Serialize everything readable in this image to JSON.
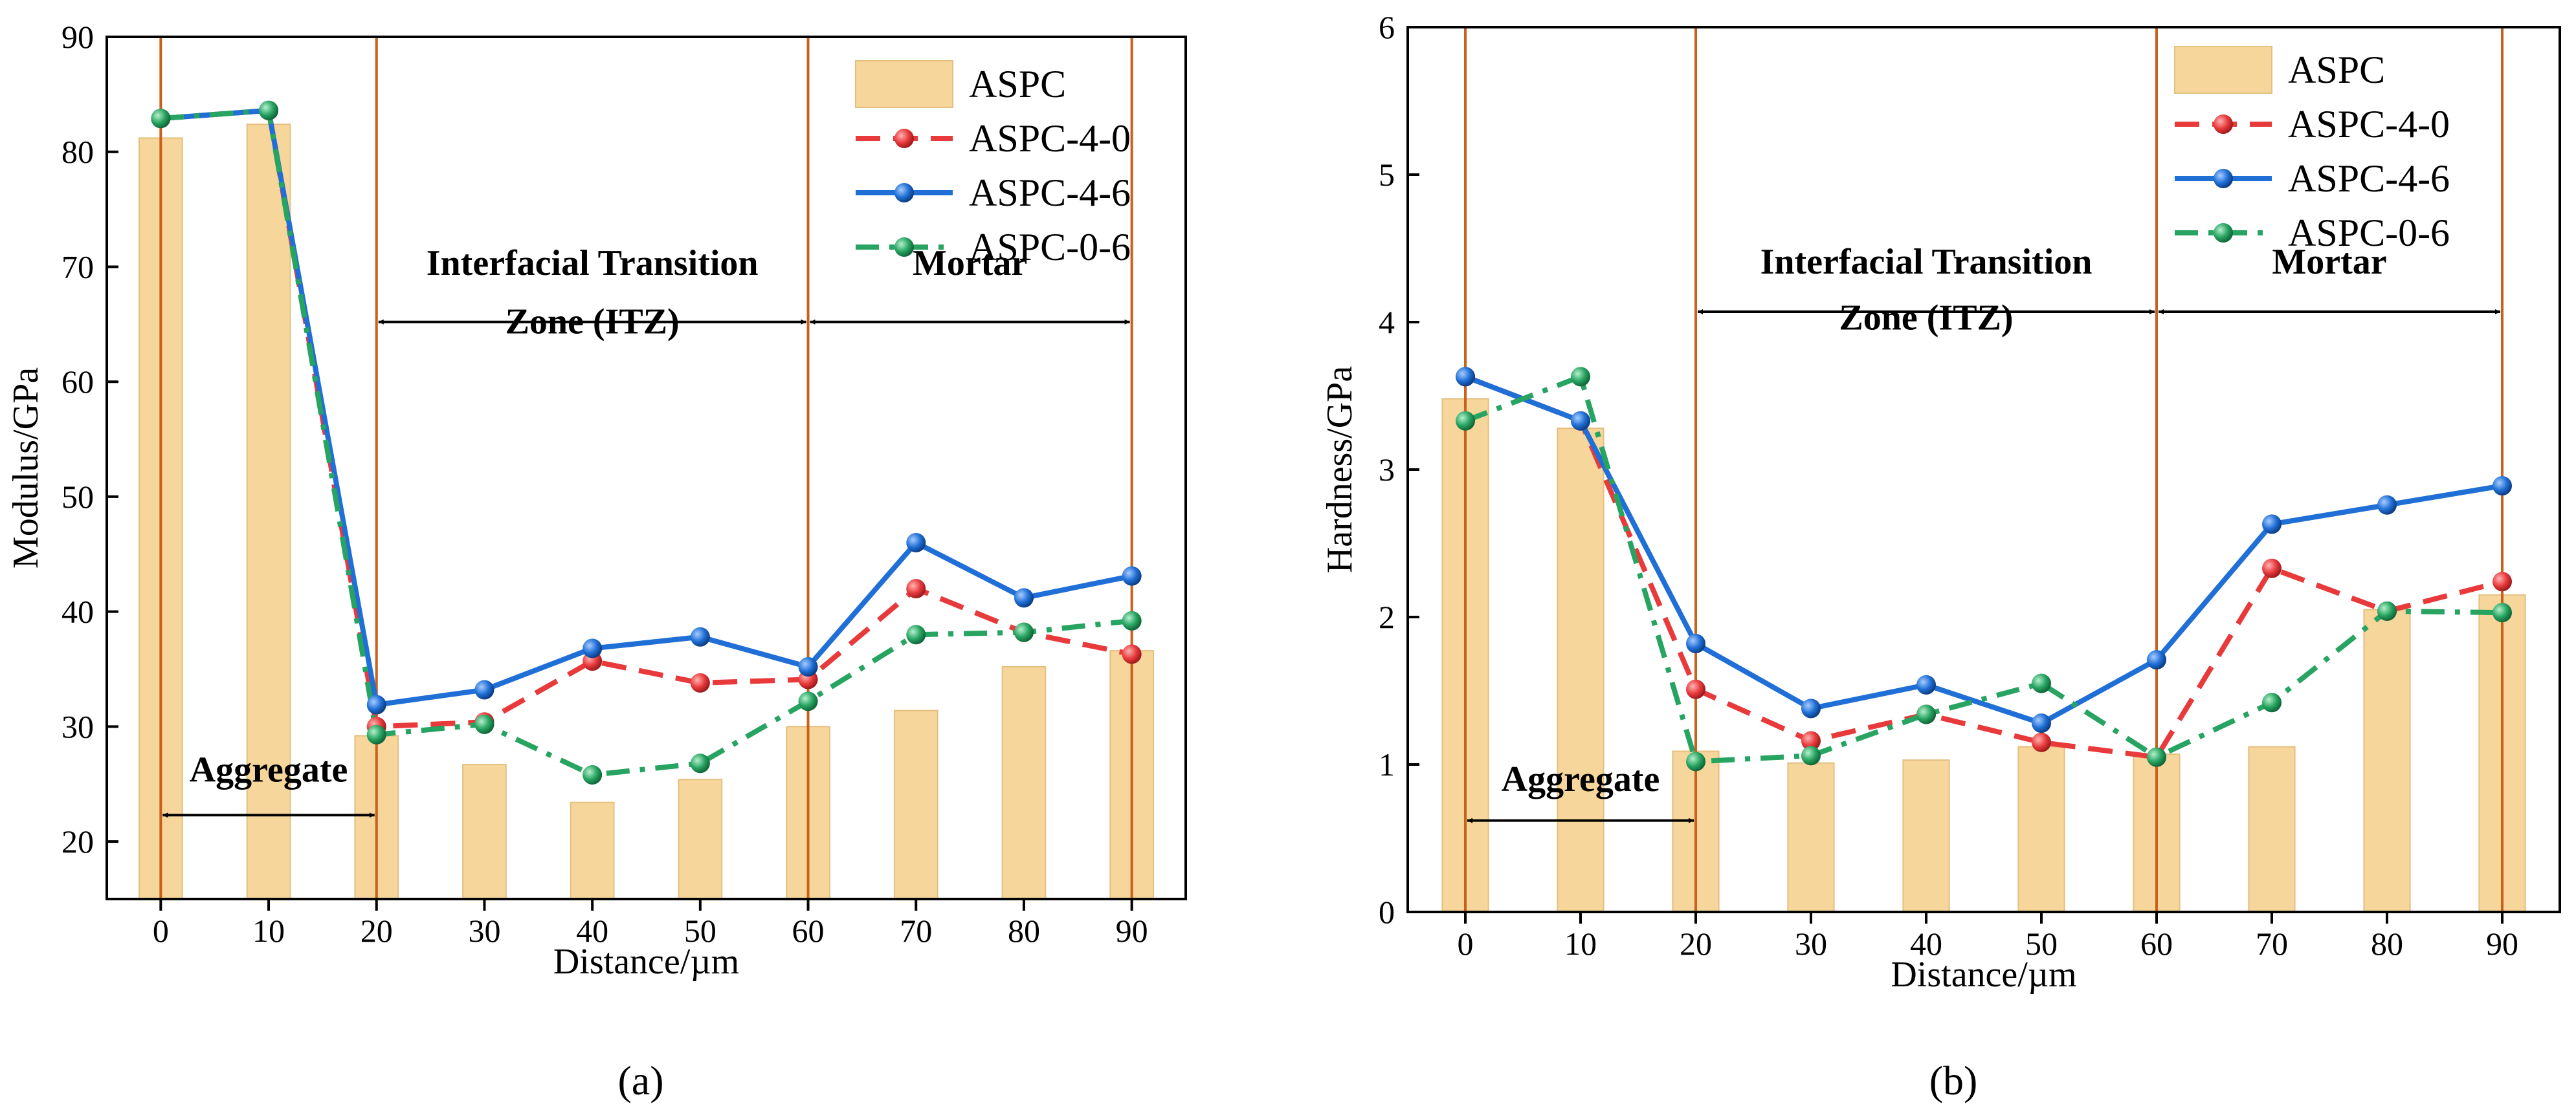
{
  "chart_data": [
    {
      "type": "bar",
      "panel_label": "(a)",
      "xlabel": "Distance/µm",
      "ylabel": "Modulus/GPa",
      "xticks": [
        0,
        10,
        20,
        30,
        40,
        50,
        60,
        70,
        80,
        90
      ],
      "xlim": [
        -5,
        95
      ],
      "ylim": [
        15,
        90
      ],
      "yticks": [
        20,
        30,
        40,
        50,
        60,
        70,
        80,
        90
      ],
      "grid": false,
      "legend_position": "top-right",
      "zone_boundaries": [
        0,
        20,
        60,
        90
      ],
      "regions": [
        {
          "name": "aggregate",
          "lines": [
            "Aggregate"
          ],
          "from": 0,
          "to": 20,
          "arrow_y": 22.3,
          "text_y": [
            25.2
          ]
        },
        {
          "name": "itz",
          "lines": [
            "Interfacial Transition",
            "Zone (ITZ)"
          ],
          "from": 20,
          "to": 60,
          "arrow_y": 65.2,
          "text_y": [
            69.3,
            64.2
          ]
        },
        {
          "name": "mortar",
          "lines": [
            "Mortar"
          ],
          "from": 60,
          "to": 90,
          "arrow_y": 65.2,
          "text_y": [
            69.3
          ]
        }
      ],
      "series": [
        {
          "name": "ASPC",
          "kind": "bar",
          "color": "#f7d69b",
          "x": [
            0,
            10,
            20,
            30,
            40,
            50,
            60,
            70,
            80,
            90
          ],
          "values": [
            81.2,
            82.4,
            29.2,
            26.7,
            23.4,
            25.4,
            30.0,
            31.4,
            35.2,
            36.6
          ]
        },
        {
          "name": "ASPC-4-0",
          "kind": "line",
          "style": "dashed",
          "color": "#e8393b",
          "x": [
            0,
            10,
            20,
            30,
            40,
            50,
            60,
            70,
            80,
            90
          ],
          "values": [
            82.9,
            83.6,
            30.0,
            30.4,
            35.7,
            33.8,
            34.1,
            42.0,
            38.2,
            36.3
          ]
        },
        {
          "name": "ASPC-4-6",
          "kind": "line",
          "style": "solid",
          "color": "#1f6fd6",
          "x": [
            0,
            10,
            20,
            30,
            40,
            50,
            60,
            70,
            80,
            90
          ],
          "values": [
            82.9,
            83.6,
            31.9,
            33.2,
            36.8,
            37.8,
            35.2,
            46.0,
            41.2,
            43.1
          ]
        },
        {
          "name": "ASPC-0-6",
          "kind": "line",
          "style": "dashdot",
          "color": "#27a461",
          "x": [
            0,
            10,
            20,
            30,
            40,
            50,
            60,
            70,
            80,
            90
          ],
          "values": [
            82.9,
            83.6,
            29.3,
            30.2,
            25.8,
            26.8,
            32.2,
            38.0,
            38.2,
            39.2
          ]
        }
      ]
    },
    {
      "type": "bar",
      "panel_label": "(b)",
      "xlabel": "Distance/µm",
      "ylabel": "Hardness/GPa",
      "xticks": [
        0,
        10,
        20,
        30,
        40,
        50,
        60,
        70,
        80,
        90
      ],
      "xlim": [
        -5,
        95
      ],
      "ylim": [
        0,
        6
      ],
      "yticks": [
        0,
        1,
        2,
        3,
        4,
        5,
        6
      ],
      "grid": false,
      "legend_position": "top-right",
      "zone_boundaries": [
        0,
        20,
        60,
        90
      ],
      "regions": [
        {
          "name": "aggregate",
          "lines": [
            "Aggregate"
          ],
          "from": 0,
          "to": 20,
          "arrow_y": 0.62,
          "text_y": [
            0.82
          ]
        },
        {
          "name": "itz",
          "lines": [
            "Interfacial Transition",
            "Zone (ITZ)"
          ],
          "from": 20,
          "to": 60,
          "arrow_y": 4.07,
          "text_y": [
            4.33,
            3.95
          ]
        },
        {
          "name": "mortar",
          "lines": [
            "Mortar"
          ],
          "from": 60,
          "to": 90,
          "arrow_y": 4.07,
          "text_y": [
            4.33
          ]
        }
      ],
      "series": [
        {
          "name": "ASPC",
          "kind": "bar",
          "color": "#f7d69b",
          "x": [
            0,
            10,
            20,
            30,
            40,
            50,
            60,
            70,
            80,
            90
          ],
          "values": [
            3.48,
            3.28,
            1.09,
            1.01,
            1.03,
            1.12,
            1.07,
            1.12,
            2.05,
            2.15
          ]
        },
        {
          "name": "ASPC-4-0",
          "kind": "line",
          "style": "dashed",
          "color": "#e8393b",
          "x": [
            0,
            10,
            20,
            30,
            40,
            50,
            60,
            70,
            80,
            90
          ],
          "values": [
            3.63,
            3.33,
            1.51,
            1.16,
            1.34,
            1.15,
            1.05,
            2.33,
            2.04,
            2.24
          ]
        },
        {
          "name": "ASPC-4-6",
          "kind": "line",
          "style": "solid",
          "color": "#1f6fd6",
          "x": [
            0,
            10,
            20,
            30,
            40,
            50,
            60,
            70,
            80,
            90
          ],
          "values": [
            3.63,
            3.33,
            1.82,
            1.38,
            1.54,
            1.28,
            1.71,
            2.63,
            2.76,
            2.89
          ]
        },
        {
          "name": "ASPC-0-6",
          "kind": "line",
          "style": "dashdot",
          "color": "#27a461",
          "x": [
            0,
            10,
            20,
            30,
            40,
            50,
            60,
            70,
            80,
            90
          ],
          "values": [
            3.33,
            3.63,
            1.02,
            1.06,
            1.34,
            1.55,
            1.05,
            1.42,
            2.04,
            2.03
          ]
        }
      ]
    }
  ]
}
